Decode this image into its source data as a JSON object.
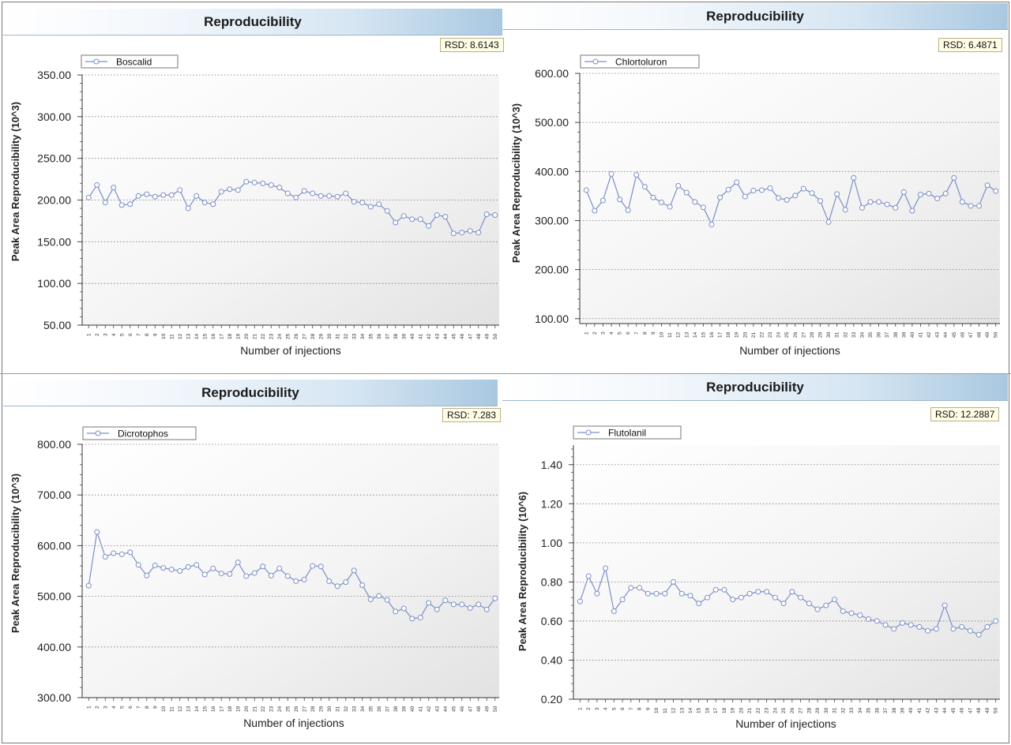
{
  "chart_data": [
    {
      "type": "line",
      "panel_title": "Reproducibility",
      "rsd": "RSD: 8.6143",
      "series_name": "Boscalid",
      "xlabel": "Number of injections",
      "ylabel": "Peak Area Reproducibility (10^3)",
      "ylim": [
        50,
        350
      ],
      "yticks": [
        50,
        100,
        150,
        200,
        250,
        300,
        350
      ],
      "ytick_labels": [
        "50.00",
        "100.00",
        "150.00",
        "200.00",
        "250.00",
        "300.00",
        "350.00"
      ],
      "x": [
        1,
        2,
        3,
        4,
        5,
        6,
        7,
        8,
        9,
        10,
        11,
        12,
        13,
        14,
        15,
        16,
        17,
        18,
        19,
        20,
        21,
        22,
        23,
        24,
        25,
        26,
        27,
        28,
        29,
        30,
        31,
        32,
        33,
        34,
        35,
        36,
        37,
        38,
        39,
        40,
        41,
        42,
        43,
        44,
        45,
        46,
        47,
        48,
        49,
        50
      ],
      "values": [
        203,
        218,
        197,
        215,
        194,
        195,
        205,
        207,
        204,
        206,
        206,
        212,
        190,
        205,
        197,
        195,
        210,
        213,
        212,
        222,
        221,
        220,
        218,
        215,
        208,
        203,
        211,
        208,
        205,
        205,
        204,
        208,
        198,
        197,
        192,
        195,
        187,
        173,
        181,
        177,
        177,
        169,
        182,
        180,
        160,
        161,
        163,
        161,
        183,
        182
      ],
      "color": "#7b8fc6"
    },
    {
      "type": "line",
      "panel_title": "Reproducibility",
      "rsd": "RSD: 6.4871",
      "series_name": "Chlortoluron",
      "xlabel": "Number of injections",
      "ylabel": "Peak Area Reproducibility (10^3)",
      "ylim": [
        90,
        600
      ],
      "yticks": [
        100,
        200,
        300,
        400,
        500,
        600
      ],
      "ytick_labels": [
        "100.00",
        "200.00",
        "300.00",
        "400.00",
        "500.00",
        "600.00"
      ],
      "x": [
        1,
        2,
        3,
        4,
        5,
        6,
        7,
        8,
        9,
        10,
        11,
        12,
        13,
        14,
        15,
        16,
        17,
        18,
        19,
        20,
        21,
        22,
        23,
        24,
        25,
        26,
        27,
        28,
        29,
        30,
        31,
        32,
        33,
        34,
        35,
        36,
        37,
        38,
        39,
        40,
        41,
        42,
        43,
        44,
        45,
        46,
        47,
        48,
        49,
        50
      ],
      "values": [
        362,
        320,
        341,
        395,
        343,
        321,
        393,
        369,
        347,
        337,
        328,
        371,
        357,
        338,
        327,
        292,
        347,
        363,
        378,
        349,
        361,
        362,
        366,
        346,
        342,
        351,
        365,
        356,
        340,
        297,
        354,
        322,
        387,
        326,
        338,
        338,
        333,
        326,
        358,
        320,
        353,
        355,
        345,
        355,
        387,
        338,
        330,
        330,
        372,
        360
      ],
      "color": "#7b8fc6"
    },
    {
      "type": "line",
      "panel_title": "Reproducibility",
      "rsd": "RSD: 7.283",
      "series_name": "Dicrotophos",
      "xlabel": "Number of injections",
      "ylabel": "Peak Area Reproducibility (10^3)",
      "ylim": [
        300,
        800
      ],
      "yticks": [
        300,
        400,
        500,
        600,
        700,
        800
      ],
      "ytick_labels": [
        "300.00",
        "400.00",
        "500.00",
        "600.00",
        "700.00",
        "800.00"
      ],
      "x": [
        1,
        2,
        3,
        4,
        5,
        6,
        7,
        8,
        9,
        10,
        11,
        12,
        13,
        14,
        15,
        16,
        17,
        18,
        19,
        20,
        21,
        22,
        23,
        24,
        25,
        26,
        27,
        28,
        29,
        30,
        31,
        32,
        33,
        34,
        35,
        36,
        37,
        38,
        39,
        40,
        41,
        42,
        43,
        44,
        45,
        46,
        47,
        48,
        49,
        50
      ],
      "values": [
        521,
        627,
        578,
        585,
        583,
        587,
        562,
        541,
        561,
        556,
        553,
        550,
        558,
        562,
        543,
        555,
        545,
        544,
        567,
        540,
        546,
        559,
        541,
        555,
        540,
        530,
        533,
        560,
        559,
        530,
        520,
        528,
        551,
        522,
        494,
        501,
        493,
        470,
        476,
        456,
        458,
        487,
        474,
        492,
        484,
        484,
        477,
        484,
        474,
        496
      ],
      "color": "#7b8fc6"
    },
    {
      "type": "line",
      "panel_title": "Reproducibility",
      "rsd": "RSD: 12.2887",
      "series_name": "Flutolanil",
      "xlabel": "Number of injections",
      "ylabel": "Peak Area Reproducibility (10^6)",
      "ylim": [
        0.2,
        1.5
      ],
      "yticks": [
        0.2,
        0.4,
        0.6,
        0.8,
        1.0,
        1.2,
        1.4
      ],
      "ytick_labels": [
        "0.20",
        "0.40",
        "0.60",
        "0.80",
        "1.00",
        "1.20",
        "1.40"
      ],
      "x": [
        1,
        2,
        3,
        4,
        5,
        6,
        7,
        8,
        9,
        10,
        11,
        12,
        13,
        14,
        15,
        16,
        17,
        18,
        19,
        20,
        21,
        22,
        23,
        24,
        25,
        26,
        27,
        28,
        29,
        30,
        31,
        32,
        33,
        34,
        35,
        36,
        37,
        38,
        39,
        40,
        41,
        42,
        43,
        44,
        45,
        46,
        47,
        48,
        49,
        50
      ],
      "values": [
        0.7,
        0.83,
        0.74,
        0.87,
        0.65,
        0.71,
        0.77,
        0.77,
        0.74,
        0.74,
        0.74,
        0.8,
        0.74,
        0.73,
        0.69,
        0.72,
        0.76,
        0.76,
        0.71,
        0.72,
        0.74,
        0.75,
        0.75,
        0.72,
        0.69,
        0.75,
        0.72,
        0.69,
        0.66,
        0.68,
        0.71,
        0.65,
        0.64,
        0.63,
        0.61,
        0.6,
        0.58,
        0.56,
        0.59,
        0.58,
        0.57,
        0.55,
        0.56,
        0.68,
        0.56,
        0.57,
        0.55,
        0.53,
        0.57,
        0.6
      ],
      "color": "#7b8fc6"
    }
  ]
}
